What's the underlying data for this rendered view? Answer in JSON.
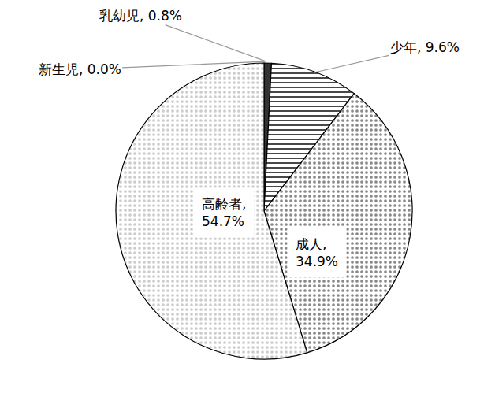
{
  "chart_data": {
    "type": "pie",
    "categories": [
      "新生児",
      "乳幼児",
      "少年",
      "成人",
      "高齢者"
    ],
    "values": [
      0.0,
      0.8,
      9.6,
      34.9,
      54.7
    ],
    "value_labels": [
      "新生児, 0.0%",
      "乳幼児, 0.8%",
      "少年, 9.6%",
      "成人, 34.9%",
      "高齢者, 54.7%"
    ],
    "colors": [
      "#222222",
      "#333333",
      "#ffffff",
      "#e8e8e8",
      "#555555"
    ],
    "data_labels": true
  }
}
